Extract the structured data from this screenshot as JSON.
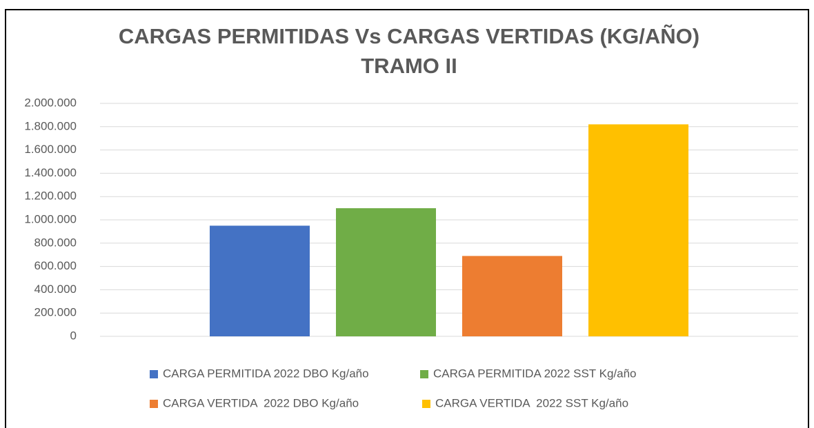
{
  "chart_data": {
    "type": "bar",
    "title": "CARGAS PERMITIDAS Vs CARGAS VERTIDAS (KG/AÑO)",
    "subtitle": "TRAMO II",
    "categories": [
      null
    ],
    "series": [
      {
        "name": "CARGA PERMITIDA 2022 DBO Kg/año",
        "color": "#4472c4",
        "values": [
          950000
        ]
      },
      {
        "name": "CARGA PERMITIDA 2022 SST Kg/año",
        "color": "#70ad47",
        "values": [
          1100000
        ]
      },
      {
        "name": "CARGA VERTIDA  2022 DBO Kg/año",
        "color": "#ed7d31",
        "values": [
          690000
        ]
      },
      {
        "name": "CARGA VERTIDA  2022 SST Kg/año",
        "color": "#ffc000",
        "values": [
          1820000
        ]
      }
    ],
    "ylim": [
      0,
      2000000
    ],
    "yticks": [
      0,
      {
        "value": 200000,
        "label": "200.000"
      },
      {
        "value": 400000,
        "label": "400.000"
      },
      {
        "value": 600000,
        "label": "600.000"
      },
      {
        "value": 800000,
        "label": "800.000"
      },
      {
        "value": 1000000,
        "label": "1.000.000"
      },
      {
        "value": 1200000,
        "label": "1.200.000"
      },
      {
        "value": 1400000,
        "label": "1.400.000"
      },
      {
        "value": 1600000,
        "label": "1.600.000"
      },
      {
        "value": 1800000,
        "label": "1.800.000"
      },
      {
        "value": 2000000,
        "label": "2.000.000"
      }
    ],
    "grid": true,
    "legend": "bottom"
  }
}
